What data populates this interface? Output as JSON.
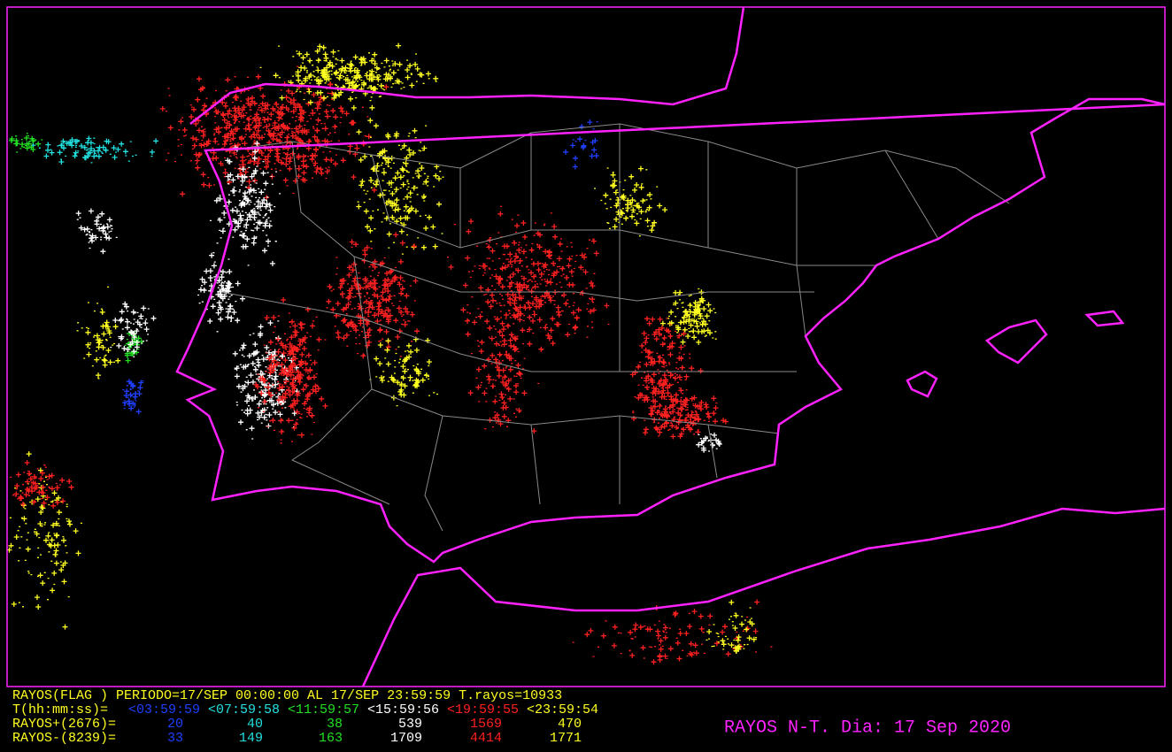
{
  "map_info": {
    "period_line": "RAYOS(FLAG ) PERIODO=17/SEP 00:00:00 AL 17/SEP 23:59:59  T.rayos=10933",
    "interval_label": "T(hh:mm:ss)=",
    "intervals": [
      {
        "label": "<03:59:59",
        "color": "#1f3fff"
      },
      {
        "label": "<07:59:58",
        "color": "#22e0e0"
      },
      {
        "label": "<11:59:57",
        "color": "#22e022"
      },
      {
        "label": "<15:59:56",
        "color": "#ffffff"
      },
      {
        "label": "<19:59:55",
        "color": "#ff2020"
      },
      {
        "label": "<23:59:54",
        "color": "#ffff20"
      }
    ],
    "positive": {
      "label": "RAYOS+(2676)=",
      "counts": [
        20,
        40,
        38,
        539,
        1569,
        470
      ]
    },
    "negative": {
      "label": "RAYOS-(8239)=",
      "counts": [
        33,
        149,
        163,
        1709,
        4414,
        1771
      ]
    },
    "title": "RAYOS N-T. Dia: 17 Sep 2020"
  }
}
